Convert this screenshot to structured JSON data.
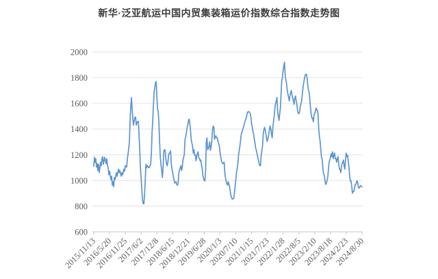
{
  "title": "新华·泛亚航运中国内贸集装箱运价指数综合指数走势图",
  "chart_data": {
    "type": "line",
    "series_name": "新华·泛亚航运中国内贸集装箱运价指数综合指数",
    "title": "新华·泛亚航运中国内贸集装箱运价指数综合指数走势图",
    "xlabel": "",
    "ylabel": "",
    "ylim": [
      600,
      2000
    ],
    "y_ticks": [
      600,
      800,
      1000,
      1200,
      1400,
      1600,
      1800,
      2000
    ],
    "x_tick_labels": [
      "2015/11/13",
      "2016/5/20",
      "2016/11/25",
      "2017/6/2",
      "2017/12/8",
      "2018/6/15",
      "2018/12/21",
      "2019/6/28",
      "2020/1/3",
      "2020/7/10",
      "2021/1/15",
      "2021/7/23",
      "2022/1/28",
      "2022/8/5",
      "2023/2/10",
      "2023/8/18",
      "2024/2/23",
      "2024/8/30"
    ],
    "grid": "horizontal",
    "legend": "none",
    "line_color": "#5B94D2",
    "grid_color": "#e2e2e2",
    "axis_color": "#c6c6c6",
    "label_color": "#5a5a5a",
    "values": [
      1110,
      1180,
      1142,
      1169,
      1104,
      1131,
      1077,
      1126,
      1061,
      1100,
      1142,
      1115,
      1169,
      1185,
      1126,
      1153,
      1180,
      1155,
      1131,
      1169,
      1115,
      1098,
      1044,
      1071,
      1040,
      1006,
      1033,
      963,
      990,
      952,
      1023,
      1006,
      1030,
      1061,
      1033,
      1060,
      1088,
      1061,
      1077,
      1055,
      1033,
      1061,
      1044,
      1065,
      1088,
      1071,
      1115,
      1110,
      1104,
      1169,
      1207,
      1250,
      1300,
      1467,
      1575,
      1645,
      1560,
      1480,
      1430,
      1467,
      1494,
      1490,
      1430,
      1451,
      1457,
      1460,
      1350,
      1234,
      1100,
      1017,
      930,
      855,
      820,
      817,
      887,
      1000,
      1126,
      1098,
      1115,
      1110,
      1098,
      1100,
      1115,
      1126,
      1213,
      1375,
      1467,
      1586,
      1690,
      1721,
      1759,
      1770,
      1650,
      1560,
      1532,
      1450,
      1300,
      1185,
      1120,
      1077,
      1023,
      1100,
      1223,
      1240,
      1235,
      1169,
      1131,
      1115,
      1140,
      1196,
      1213,
      1213,
      1230,
      1126,
      1090,
      1061,
      1030,
      1006,
      979,
      985,
      990,
      968,
      963,
      975,
      1061,
      1080,
      1098,
      1115,
      1077,
      1100,
      1159,
      1180,
      1202,
      1315,
      1340,
      1369,
      1410,
      1432,
      1467,
      1478,
      1440,
      1386,
      1315,
      1290,
      1267,
      1213,
      1240,
      1196,
      1200,
      1153,
      1185,
      1210,
      1223,
      1180,
      1170,
      1153,
      1159,
      1120,
      1098,
      1039,
      1017,
      1000,
      995,
      1077,
      1294,
      1331,
      1239,
      1250,
      1267,
      1300,
      1234,
      1260,
      1300,
      1386,
      1422,
      1420,
      1321,
      1340,
      1348,
      1331,
      1331,
      1304,
      1285,
      1267,
      1220,
      1185,
      1152,
      1140,
      1131,
      1135,
      1142,
      1061,
      1020,
      990,
      975,
      963,
      990,
      970,
      952,
      910,
      881,
      865,
      854,
      858,
      860,
      900,
      952,
      1000,
      1061,
      1090,
      1126,
      1196,
      1230,
      1267,
      1310,
      1359,
      1380,
      1396,
      1413,
      1430,
      1451,
      1470,
      1484,
      1505,
      1532,
      1532,
      1537,
      1530,
      1521,
      1494,
      1440,
      1413,
      1380,
      1359,
      1320,
      1288,
      1250,
      1234,
      1207,
      1180,
      1159,
      1131,
      1115,
      1115,
      1196,
      1230,
      1267,
      1359,
      1396,
      1413,
      1390,
      1359,
      1321,
      1304,
      1330,
      1359,
      1396,
      1424,
      1400,
      1359,
      1332,
      1413,
      1460,
      1505,
      1564,
      1600,
      1619,
      1646,
      1537,
      1500,
      1467,
      1520,
      1564,
      1673,
      1780,
      1800,
      1857,
      1890,
      1920,
      1819,
      1781,
      1754,
      1700,
      1673,
      1646,
      1619,
      1660,
      1684,
      1700,
      1668,
      1640,
      1619,
      1592,
      1640,
      1657,
      1619,
      1592,
      1548,
      1521,
      1521,
      1532,
      1575,
      1600,
      1619,
      1673,
      1727,
      1760,
      1792,
      1819,
      1825,
      1828,
      1792,
      1738,
      1700,
      1684,
      1619,
      1564,
      1510,
      1484,
      1484,
      1457,
      1510,
      1520,
      1537,
      1564,
      1548,
      1548,
      1505,
      1396,
      1340,
      1304,
      1234,
      1180,
      1159,
      1088,
      1050,
      1040,
      996,
      969,
      979,
      1000,
      1023,
      1088,
      1142,
      1160,
      1180,
      1207,
      1185,
      1223,
      1169,
      1196,
      1213,
      1169,
      1169,
      1142,
      1169,
      1185,
      1131,
      1088,
      1088,
      1061,
      1104,
      1131,
      1142,
      1159,
      1115,
      1088,
      1159,
      1213,
      1185,
      1196,
      1147,
      1098,
      1023,
      996,
      996,
      952,
      900,
      914,
      914,
      941,
      969,
      969,
      990,
      996,
      969,
      941,
      941,
      952,
      960,
      955,
      950
    ]
  }
}
